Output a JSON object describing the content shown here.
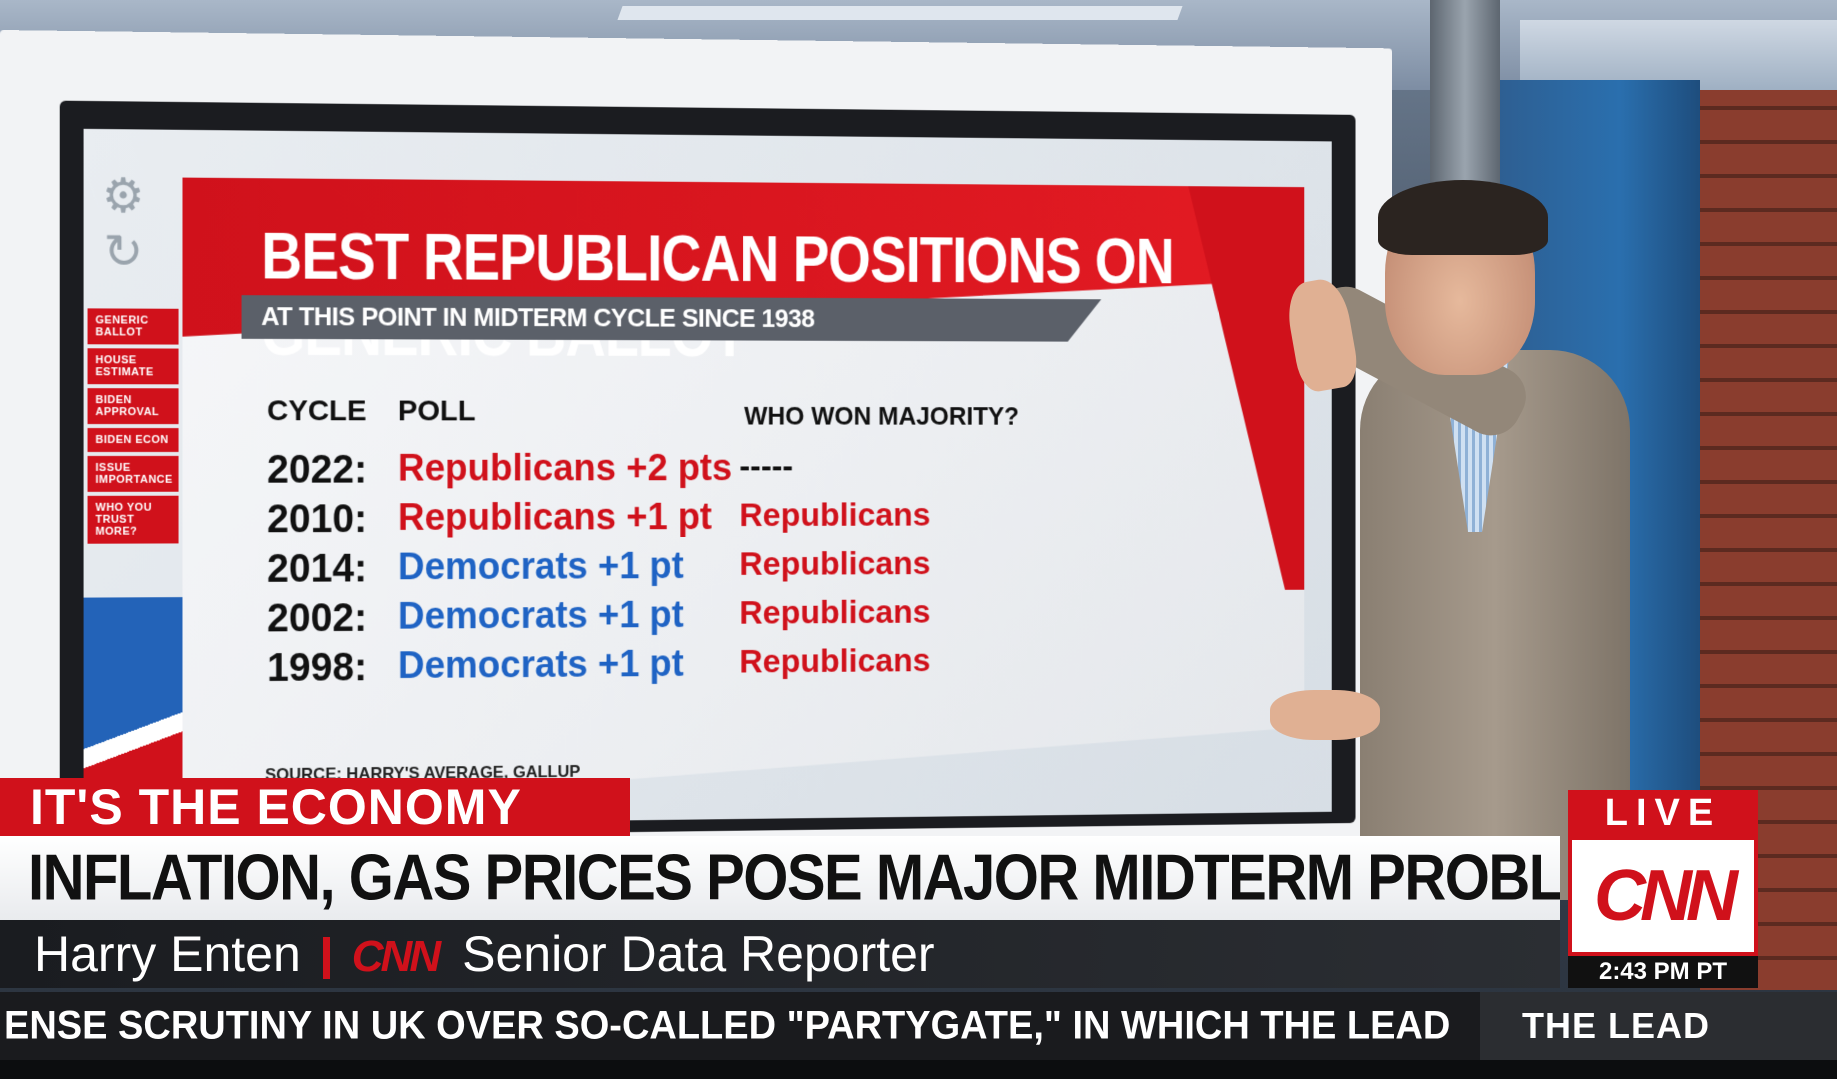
{
  "graphic": {
    "side_menu": [
      "GENERIC BALLOT",
      "HOUSE ESTIMATE",
      "BIDEN APPROVAL",
      "BIDEN ECON",
      "ISSUE IMPORTANCE",
      "WHO YOU TRUST MORE?"
    ],
    "title": "BEST REPUBLICAN POSITIONS ON GENERIC BALLOT",
    "subtitle": "AT THIS POINT IN MIDTERM CYCLE SINCE 1938",
    "headers": {
      "cycle": "CYCLE",
      "poll": "POLL",
      "won": "WHO WON MAJORITY?"
    },
    "rows": [
      {
        "year": "2022:",
        "poll": "Republicans +2 pts",
        "party": "rep",
        "won": "-----"
      },
      {
        "year": "2010:",
        "poll": "Republicans +1 pt",
        "party": "rep",
        "won": "Republicans"
      },
      {
        "year": "2014:",
        "poll": "Democrats +1 pt",
        "party": "dem",
        "won": "Republicans"
      },
      {
        "year": "2002:",
        "poll": "Democrats +1 pt",
        "party": "dem",
        "won": "Republicans"
      },
      {
        "year": "1998:",
        "poll": "Democrats +1 pt",
        "party": "dem",
        "won": "Republicans"
      }
    ],
    "source": "SOURCE: HARRY'S AVERAGE, GALLUP",
    "colors": {
      "republican": "#d0111b",
      "democrat": "#1f63c4"
    }
  },
  "lower_third": {
    "tag": "IT'S THE ECONOMY",
    "headline": "INFLATION, GAS PRICES POSE MAJOR MIDTERM PROBLEMS FOR DEMS",
    "name": "Harry Enten",
    "network_logo": "CNN",
    "role": "Senior Data Reporter"
  },
  "ticker": {
    "text": "ENSE SCRUTINY IN UK OVER SO-CALLED \"PARTYGATE,\" IN WHICH THE LEAD",
    "show": "THE LEAD"
  },
  "bug": {
    "live": "LIVE",
    "logo": "CNN",
    "time": "2:43 PM PT"
  },
  "icons": {
    "settings": "gear-icon",
    "refresh": "refresh-icon"
  }
}
